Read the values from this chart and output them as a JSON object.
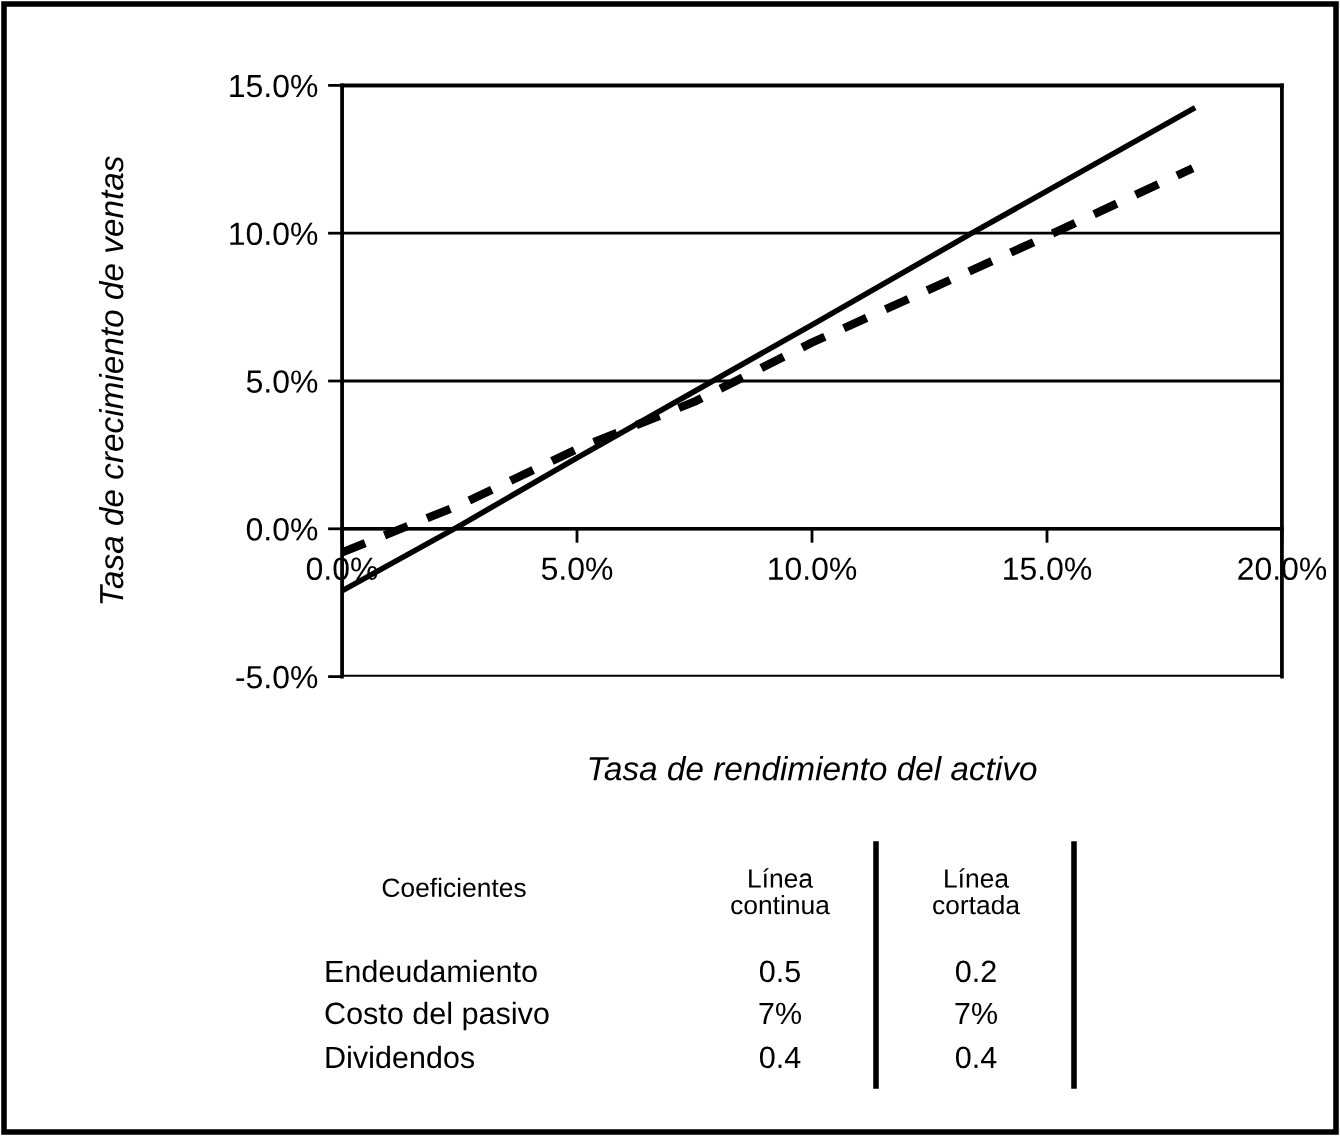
{
  "chart_data": {
    "type": "line",
    "xlabel": "Tasa de rendimiento del activo",
    "ylabel": "Tasa de crecimiento de ventas",
    "series": [
      {
        "color": "#000000",
        "line_style": "solid",
        "x": [
          0,
          2.5,
          5,
          10,
          13.4,
          18.1
        ],
        "values": [
          -2.1,
          0.1,
          2.4,
          6.9,
          10,
          14.2
        ]
      },
      {
        "color": "#000000",
        "line_style": "dashed",
        "x": [
          0,
          2.5,
          5,
          7.5,
          10,
          15,
          18.1
        ],
        "values": [
          -0.8,
          0.8,
          2.7,
          4.3,
          6.3,
          9.9,
          12.2
        ]
      }
    ],
    "xlim": [
      0,
      20
    ],
    "ylim": [
      -5,
      15
    ],
    "xticks": [
      {
        "value": 0,
        "label": "0.0%"
      },
      {
        "value": 5,
        "label": "5.0%"
      },
      {
        "value": 10,
        "label": "10.0%"
      },
      {
        "value": 15,
        "label": "15.0%"
      },
      {
        "value": 20,
        "label": "20.0%"
      }
    ],
    "yticks": [
      {
        "value": -5,
        "label": "-5.0%"
      },
      {
        "value": 0,
        "label": "0.0%"
      },
      {
        "value": 5,
        "label": "5.0%"
      },
      {
        "value": 10,
        "label": "10.0%"
      },
      {
        "value": 15,
        "label": "15.0%"
      }
    ],
    "grid": "y",
    "legend": false,
    "marker": "none",
    "annotations": [
      "Coeficientes",
      "Línea\ncontinua",
      "Línea\ncortada",
      "Endeudamiento",
      "0.5",
      "0.2",
      "Costo del pasivo",
      "7%",
      "7%",
      "Dividendos",
      "0.4",
      "0.4"
    ]
  }
}
